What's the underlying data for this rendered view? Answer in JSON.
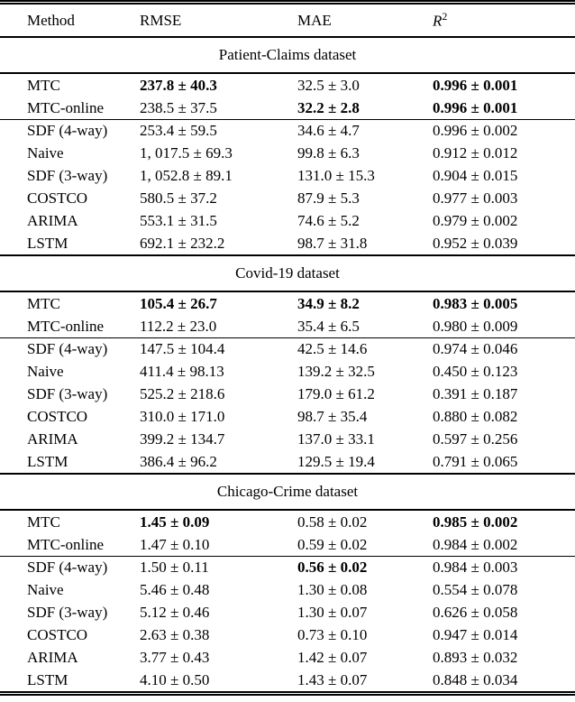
{
  "header": {
    "method": "Method",
    "rmse": "RMSE",
    "mae": "MAE",
    "r2_base": "R",
    "r2_sup": "2"
  },
  "sections": [
    {
      "title": "Patient-Claims dataset",
      "rows": [
        {
          "method": "MTC",
          "rmse": "237.8 ± 40.3",
          "mae": "32.5 ± 3.0",
          "r2": "0.996 ± 0.001",
          "bold": {
            "rmse": true,
            "mae": false,
            "r2": true
          }
        },
        {
          "method": "MTC-online",
          "rmse": "238.5 ± 37.5",
          "mae": "32.2 ± 2.8",
          "r2": "0.996 ± 0.001",
          "bold": {
            "rmse": false,
            "mae": true,
            "r2": true
          }
        },
        {
          "method": "SDF (4-way)",
          "rmse": "253.4 ± 59.5",
          "mae": "34.6 ± 4.7",
          "r2": "0.996 ± 0.002",
          "bold": {
            "rmse": false,
            "mae": false,
            "r2": false
          }
        },
        {
          "method": "Naive",
          "rmse": "1, 017.5 ± 69.3",
          "mae": "99.8 ± 6.3",
          "r2": "0.912 ± 0.012",
          "bold": {
            "rmse": false,
            "mae": false,
            "r2": false
          }
        },
        {
          "method": "SDF (3-way)",
          "rmse": "1, 052.8 ± 89.1",
          "mae": "131.0 ± 15.3",
          "r2": "0.904 ± 0.015",
          "bold": {
            "rmse": false,
            "mae": false,
            "r2": false
          }
        },
        {
          "method": "COSTCO",
          "rmse": "580.5 ± 37.2",
          "mae": "87.9 ± 5.3",
          "r2": "0.977 ± 0.003",
          "bold": {
            "rmse": false,
            "mae": false,
            "r2": false
          }
        },
        {
          "method": "ARIMA",
          "rmse": "553.1 ± 31.5",
          "mae": "74.6 ± 5.2",
          "r2": "0.979 ± 0.002",
          "bold": {
            "rmse": false,
            "mae": false,
            "r2": false
          }
        },
        {
          "method": "LSTM",
          "rmse": "692.1 ± 232.2",
          "mae": "98.7 ± 31.8",
          "r2": "0.952 ± 0.039",
          "bold": {
            "rmse": false,
            "mae": false,
            "r2": false
          }
        }
      ]
    },
    {
      "title": "Covid-19 dataset",
      "rows": [
        {
          "method": "MTC",
          "rmse": "105.4 ± 26.7",
          "mae": "34.9 ± 8.2",
          "r2": "0.983 ± 0.005",
          "bold": {
            "rmse": true,
            "mae": true,
            "r2": true
          }
        },
        {
          "method": "MTC-online",
          "rmse": "112.2 ± 23.0",
          "mae": "35.4 ± 6.5",
          "r2": "0.980 ± 0.009",
          "bold": {
            "rmse": false,
            "mae": false,
            "r2": false
          }
        },
        {
          "method": "SDF (4-way)",
          "rmse": "147.5 ± 104.4",
          "mae": "42.5 ± 14.6",
          "r2": "0.974 ± 0.046",
          "bold": {
            "rmse": false,
            "mae": false,
            "r2": false
          }
        },
        {
          "method": "Naive",
          "rmse": "411.4 ± 98.13",
          "mae": "139.2 ± 32.5",
          "r2": "0.450 ± 0.123",
          "bold": {
            "rmse": false,
            "mae": false,
            "r2": false
          }
        },
        {
          "method": "SDF (3-way)",
          "rmse": "525.2 ± 218.6",
          "mae": "179.0 ± 61.2",
          "r2": "0.391 ± 0.187",
          "bold": {
            "rmse": false,
            "mae": false,
            "r2": false
          }
        },
        {
          "method": "COSTCO",
          "rmse": "310.0 ± 171.0",
          "mae": "98.7 ± 35.4",
          "r2": "0.880 ± 0.082",
          "bold": {
            "rmse": false,
            "mae": false,
            "r2": false
          }
        },
        {
          "method": "ARIMA",
          "rmse": "399.2 ± 134.7",
          "mae": "137.0 ± 33.1",
          "r2": "0.597 ± 0.256",
          "bold": {
            "rmse": false,
            "mae": false,
            "r2": false
          }
        },
        {
          "method": "LSTM",
          "rmse": "386.4 ± 96.2",
          "mae": "129.5 ± 19.4",
          "r2": "0.791 ± 0.065",
          "bold": {
            "rmse": false,
            "mae": false,
            "r2": false
          }
        }
      ]
    },
    {
      "title": "Chicago-Crime dataset",
      "rows": [
        {
          "method": "MTC",
          "rmse": "1.45 ± 0.09",
          "mae": "0.58 ± 0.02",
          "r2": "0.985 ± 0.002",
          "bold": {
            "rmse": true,
            "mae": false,
            "r2": true
          }
        },
        {
          "method": "MTC-online",
          "rmse": "1.47 ± 0.10",
          "mae": "0.59 ± 0.02",
          "r2": "0.984 ± 0.002",
          "bold": {
            "rmse": false,
            "mae": false,
            "r2": false
          }
        },
        {
          "method": "SDF (4-way)",
          "rmse": "1.50 ± 0.11",
          "mae": "0.56 ± 0.02",
          "r2": "0.984 ± 0.003",
          "bold": {
            "rmse": false,
            "mae": true,
            "r2": false
          }
        },
        {
          "method": "Naive",
          "rmse": "5.46 ± 0.48",
          "mae": "1.30 ± 0.08",
          "r2": "0.554 ± 0.078",
          "bold": {
            "rmse": false,
            "mae": false,
            "r2": false
          }
        },
        {
          "method": "SDF (3-way)",
          "rmse": "5.12 ± 0.46",
          "mae": "1.30 ± 0.07",
          "r2": "0.626 ± 0.058",
          "bold": {
            "rmse": false,
            "mae": false,
            "r2": false
          }
        },
        {
          "method": "COSTCO",
          "rmse": "2.63 ± 0.38",
          "mae": "0.73 ± 0.10",
          "r2": "0.947 ± 0.014",
          "bold": {
            "rmse": false,
            "mae": false,
            "r2": false
          }
        },
        {
          "method": "ARIMA",
          "rmse": "3.77 ± 0.43",
          "mae": "1.42 ± 0.07",
          "r2": "0.893 ± 0.032",
          "bold": {
            "rmse": false,
            "mae": false,
            "r2": false
          }
        },
        {
          "method": "LSTM",
          "rmse": "4.10 ± 0.50",
          "mae": "1.43 ± 0.07",
          "r2": "0.848 ± 0.034",
          "bold": {
            "rmse": false,
            "mae": false,
            "r2": false
          }
        }
      ]
    }
  ]
}
